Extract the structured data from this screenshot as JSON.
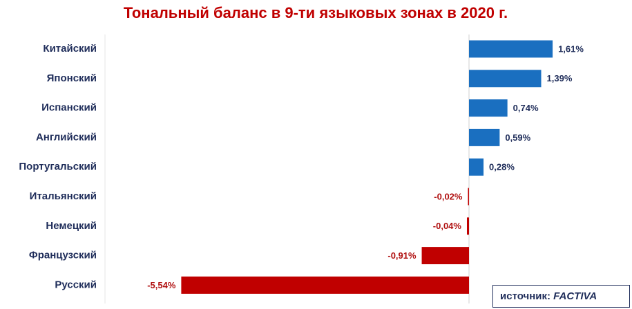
{
  "chart_data": {
    "type": "hbar",
    "title": "Тональный баланс в 9-ти языковых зонах в 2020 г.",
    "categories": [
      "Китайский",
      "Японский",
      "Испанский",
      "Английский",
      "Португальский",
      "Итальянский",
      "Немецкий",
      "Французский",
      "Русский"
    ],
    "values": [
      1.61,
      1.39,
      0.74,
      0.59,
      0.28,
      -0.02,
      -0.04,
      -0.91,
      -5.54
    ],
    "value_labels": [
      "1,61%",
      "1,39%",
      "0,74%",
      "0,59%",
      "0,28%",
      "-0,02%",
      "-0,04%",
      "-0,91%",
      "-5,54%"
    ],
    "positive_color": "#1a6fc0",
    "negative_color": "#c00000"
  },
  "source": {
    "label": "источник:",
    "name": "FACTIVA"
  }
}
